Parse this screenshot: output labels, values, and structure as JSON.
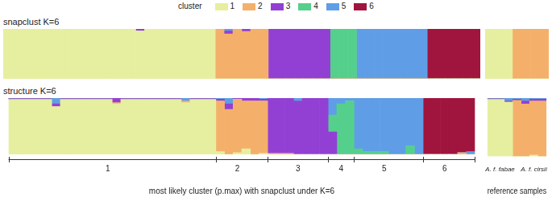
{
  "chart_data": [
    {
      "type": "bar",
      "title": "snapclust K=6",
      "legend": "top",
      "legend_title": "cluster",
      "stacked": true,
      "tick_labels": false,
      "ylim": [
        0,
        1
      ],
      "categories": [
        null,
        null,
        null,
        null,
        null,
        null,
        null,
        null,
        null,
        null,
        null,
        null,
        null,
        null,
        null,
        null,
        null,
        null,
        null,
        null,
        null,
        null,
        null,
        null,
        null,
        null,
        null,
        null,
        null,
        null,
        null,
        null,
        null,
        null,
        null,
        null,
        null,
        null,
        null,
        null,
        null,
        null,
        null,
        null,
        null,
        null,
        null,
        null,
        null,
        null,
        null,
        null,
        null,
        null
      ],
      "series": [
        {
          "name": "1",
          "color": "#e6ef9f",
          "values": [
            1,
            1,
            1,
            1,
            1,
            1,
            1,
            1,
            1,
            1,
            1,
            1,
            1,
            1,
            1,
            0.96,
            1,
            1,
            1,
            1,
            1,
            1,
            1,
            1,
            0,
            0,
            0,
            0,
            0,
            0,
            0,
            0,
            0,
            0,
            0,
            0,
            0,
            0,
            0,
            0,
            0,
            0,
            0,
            0,
            0,
            0,
            0,
            0,
            0,
            0,
            0,
            0,
            0,
            0
          ]
        },
        {
          "name": "2",
          "color": "#f4b06a",
          "values": [
            0,
            0,
            0,
            0,
            0,
            0,
            0,
            0,
            0,
            0,
            0,
            0,
            0,
            0,
            0,
            0,
            0,
            0,
            0,
            0,
            0,
            0,
            0,
            0,
            1,
            0.9,
            1,
            0.95,
            1,
            1,
            0,
            0,
            0,
            0,
            0,
            0,
            0,
            0,
            0,
            0,
            0,
            0,
            0,
            0,
            0,
            0,
            0,
            0,
            0,
            0,
            0,
            0,
            0,
            0
          ]
        },
        {
          "name": "3",
          "color": "#9240d4",
          "values": [
            0,
            0,
            0,
            0,
            0,
            0,
            0,
            0,
            0,
            0,
            0,
            0,
            0,
            0,
            0,
            0.04,
            0,
            0,
            0,
            0,
            0,
            0,
            0,
            0,
            0,
            0.06,
            0,
            0.05,
            0,
            0,
            1,
            1,
            1,
            1,
            1,
            1,
            1,
            0,
            0,
            0,
            0,
            0,
            0,
            0,
            0,
            0,
            0,
            0,
            0,
            0,
            0,
            0,
            0,
            0
          ]
        },
        {
          "name": "4",
          "color": "#55d08c",
          "values": [
            0,
            0,
            0,
            0,
            0,
            0,
            0,
            0,
            0,
            0,
            0,
            0,
            0,
            0,
            0,
            0,
            0,
            0,
            0,
            0,
            0,
            0,
            0,
            0,
            0,
            0,
            0,
            0,
            0,
            0,
            0,
            0,
            0,
            0,
            0,
            0,
            0,
            1,
            1,
            1,
            0,
            0,
            0,
            0,
            0,
            0,
            0,
            0,
            0,
            0,
            0,
            0,
            0,
            0
          ]
        },
        {
          "name": "5",
          "color": "#5f9ee6",
          "values": [
            0,
            0,
            0,
            0,
            0,
            0,
            0,
            0,
            0,
            0,
            0,
            0,
            0,
            0,
            0,
            0,
            0,
            0,
            0,
            0,
            0,
            0,
            0,
            0,
            0,
            0.04,
            0,
            0,
            0,
            0,
            0,
            0,
            0,
            0,
            0,
            0,
            0,
            0,
            0,
            0,
            1,
            1,
            1,
            1,
            1,
            1,
            1,
            1,
            0,
            0,
            0,
            0,
            0,
            0
          ]
        },
        {
          "name": "6",
          "color": "#a0153e",
          "values": [
            0,
            0,
            0,
            0,
            0,
            0,
            0,
            0,
            0,
            0,
            0,
            0,
            0,
            0,
            0,
            0,
            0,
            0,
            0,
            0,
            0,
            0,
            0,
            0,
            0,
            0,
            0,
            0,
            0,
            0,
            0,
            0,
            0,
            0,
            0,
            0,
            0,
            0,
            0,
            0,
            0,
            0,
            0,
            0,
            0,
            0,
            0,
            0,
            1,
            1,
            1,
            1,
            1,
            1
          ]
        }
      ]
    },
    {
      "type": "bar",
      "stacked": true,
      "tick_labels": false,
      "ylim": [
        0,
        1
      ],
      "categories": [
        null,
        null,
        null,
        null,
        null,
        null,
        null
      ],
      "series": [
        {
          "name": "1",
          "color": "#e6ef9f",
          "values": [
            1,
            1,
            1,
            0,
            0,
            0,
            0
          ]
        },
        {
          "name": "2",
          "color": "#f4b06a",
          "values": [
            0,
            0,
            0,
            1,
            1,
            1,
            1
          ]
        },
        {
          "name": "3",
          "color": "#9240d4",
          "values": [
            0,
            0,
            0,
            0,
            0,
            0,
            0
          ]
        },
        {
          "name": "4",
          "color": "#55d08c",
          "values": [
            0,
            0,
            0,
            0,
            0,
            0,
            0
          ]
        },
        {
          "name": "5",
          "color": "#5f9ee6",
          "values": [
            0,
            0,
            0,
            0,
            0,
            0,
            0
          ]
        },
        {
          "name": "6",
          "color": "#a0153e",
          "values": [
            0,
            0,
            0,
            0,
            0,
            0,
            0
          ]
        }
      ]
    },
    {
      "type": "bar",
      "title": "structure K=6",
      "x_label": "most likely cluster (p.max) with snapclust under K=6",
      "stacked": true,
      "tick_labels": "x",
      "ylim": [
        0,
        1
      ],
      "categories": [
        null,
        null,
        null,
        null,
        null,
        null,
        null,
        null,
        null,
        null,
        null,
        "1",
        null,
        null,
        null,
        null,
        null,
        null,
        null,
        null,
        null,
        null,
        null,
        null,
        null,
        null,
        "2",
        null,
        null,
        null,
        null,
        null,
        null,
        "3",
        null,
        null,
        null,
        null,
        "4",
        null,
        null,
        null,
        null,
        "5",
        null,
        null,
        null,
        null,
        null,
        null,
        "6",
        null,
        null,
        null
      ],
      "series": [
        {
          "name": "1",
          "color": "#e6ef9f",
          "values": [
            0.97,
            0.97,
            0.97,
            0.97,
            0.97,
            0.85,
            0.97,
            0.97,
            0.97,
            0.97,
            0.97,
            0.97,
            0.9,
            0.97,
            0.97,
            0.97,
            0.97,
            0.97,
            0.97,
            0.97,
            0.92,
            0.97,
            0.97,
            0.97,
            0.05,
            0,
            0.03,
            0.1,
            0,
            0.02,
            0,
            0,
            0,
            0,
            0,
            0,
            0,
            0,
            0,
            0,
            0,
            0,
            0,
            0,
            0,
            0,
            0,
            0,
            0,
            0,
            0,
            0,
            0,
            0
          ]
        },
        {
          "name": "2",
          "color": "#f4b06a",
          "values": [
            0.01,
            0.01,
            0.01,
            0.01,
            0.01,
            0,
            0.01,
            0.01,
            0.01,
            0.01,
            0.01,
            0.01,
            0.02,
            0.01,
            0.01,
            0.01,
            0.01,
            0.01,
            0.01,
            0.01,
            0.03,
            0.01,
            0.01,
            0.01,
            0.9,
            0.8,
            0.95,
            0.85,
            0.95,
            0.93,
            0.02,
            0.02,
            0.02,
            0,
            0,
            0,
            0,
            0,
            0,
            0,
            0,
            0,
            0,
            0,
            0,
            0,
            0,
            0,
            0,
            0,
            0,
            0,
            0.03,
            0
          ]
        },
        {
          "name": "3",
          "color": "#9240d4",
          "values": [
            0.01,
            0.01,
            0.01,
            0.01,
            0.01,
            0.05,
            0.01,
            0.01,
            0.01,
            0.01,
            0.01,
            0.01,
            0.08,
            0.01,
            0.01,
            0.01,
            0.01,
            0.01,
            0.01,
            0.01,
            0,
            0.01,
            0.01,
            0.01,
            0.03,
            0.1,
            0.02,
            0.05,
            0.05,
            0.03,
            0.98,
            0.98,
            0.98,
            0.95,
            1,
            1,
            1,
            0.4,
            0,
            0,
            0,
            0,
            0,
            0,
            0,
            0,
            0,
            0,
            0,
            0,
            0,
            0,
            0,
            0
          ]
        },
        {
          "name": "4",
          "color": "#55d08c",
          "values": [
            0,
            0,
            0,
            0,
            0,
            0,
            0,
            0,
            0,
            0,
            0,
            0,
            0,
            0,
            0,
            0,
            0,
            0,
            0,
            0,
            0,
            0,
            0,
            0,
            0,
            0,
            0,
            0,
            0,
            0,
            0,
            0,
            0,
            0,
            0,
            0,
            0,
            0.3,
            0.9,
            0.95,
            0.1,
            0.05,
            0.05,
            0.05,
            0,
            0,
            0.15,
            0,
            0,
            0,
            0,
            0,
            0,
            0
          ]
        },
        {
          "name": "5",
          "color": "#5f9ee6",
          "values": [
            0.01,
            0.01,
            0.01,
            0.01,
            0.01,
            0.1,
            0.01,
            0.01,
            0.01,
            0.01,
            0.01,
            0.01,
            0,
            0.01,
            0.01,
            0.01,
            0.01,
            0.01,
            0.01,
            0.01,
            0.05,
            0.01,
            0.01,
            0.01,
            0.02,
            0.1,
            0,
            0,
            0,
            0.02,
            0,
            0,
            0,
            0.05,
            0,
            0,
            0,
            0.3,
            0.1,
            0.05,
            0.9,
            0.95,
            0.95,
            0.95,
            1,
            1,
            0.85,
            1,
            0,
            0,
            0,
            0,
            0,
            0.05
          ]
        },
        {
          "name": "6",
          "color": "#a0153e",
          "values": [
            0,
            0,
            0,
            0,
            0,
            0,
            0,
            0,
            0,
            0,
            0,
            0,
            0,
            0,
            0,
            0,
            0,
            0,
            0,
            0,
            0,
            0,
            0,
            0,
            0,
            0,
            0,
            0,
            0,
            0,
            0,
            0,
            0,
            0,
            0,
            0,
            0,
            0,
            0,
            0,
            0,
            0,
            0,
            0,
            0,
            0,
            0,
            0,
            1,
            1,
            1,
            1,
            0.97,
            0.95
          ]
        }
      ]
    },
    {
      "type": "bar",
      "x_label": "reference samples",
      "stacked": true,
      "tick_labels": "x",
      "ylim": [
        0,
        1
      ],
      "categories": [
        null,
        "A. f. fabae",
        null,
        null,
        null,
        "A. f. cirsii",
        null
      ],
      "series": [
        {
          "name": "1",
          "color": "#e6ef9f",
          "values": [
            0.97,
            0.97,
            0.93,
            0,
            0,
            0.02,
            0
          ]
        },
        {
          "name": "2",
          "color": "#f4b06a",
          "values": [
            0.01,
            0.01,
            0,
            0.96,
            0.9,
            0.93,
            0.95
          ]
        },
        {
          "name": "3",
          "color": "#9240d4",
          "values": [
            0.01,
            0.01,
            0.02,
            0.02,
            0.05,
            0.03,
            0.03
          ]
        },
        {
          "name": "4",
          "color": "#55d08c",
          "values": [
            0,
            0,
            0,
            0,
            0,
            0,
            0
          ]
        },
        {
          "name": "5",
          "color": "#5f9ee6",
          "values": [
            0.01,
            0.01,
            0.05,
            0.02,
            0.05,
            0.02,
            0.02
          ]
        },
        {
          "name": "6",
          "color": "#a0153e",
          "values": [
            0,
            0,
            0,
            0,
            0,
            0,
            0
          ]
        }
      ]
    }
  ]
}
